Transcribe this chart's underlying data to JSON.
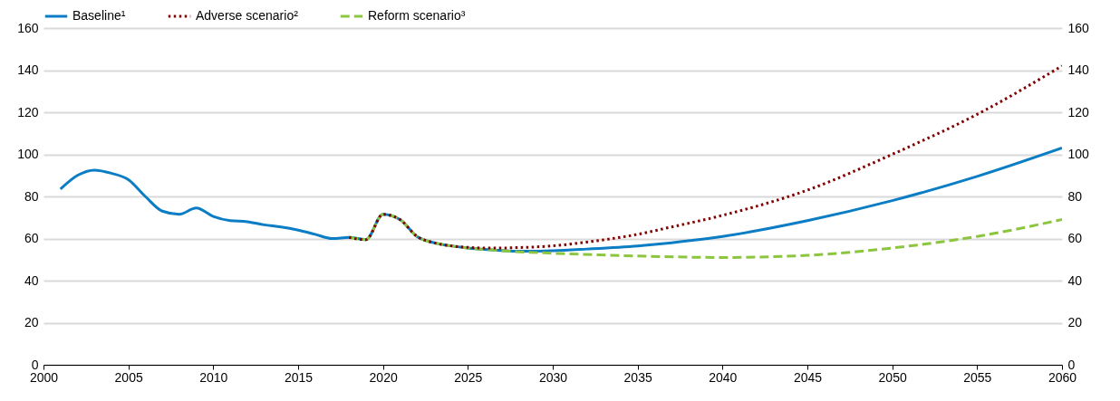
{
  "chart_data": {
    "type": "line",
    "xlim": [
      2000,
      2060
    ],
    "xticks": [
      2000,
      2005,
      2010,
      2015,
      2020,
      2025,
      2030,
      2035,
      2040,
      2045,
      2050,
      2055,
      2060
    ],
    "ylim": [
      0,
      160
    ],
    "yticks": [
      0,
      20,
      40,
      60,
      80,
      100,
      120,
      140,
      160
    ],
    "y2lim": [
      0,
      160
    ],
    "y2ticks": [
      0,
      20,
      40,
      60,
      80,
      100,
      120,
      140,
      160
    ],
    "grid": "y",
    "legend": "top",
    "series": [
      {
        "name": "Baseline¹",
        "color": "#0b7dc4",
        "line_style": "solid",
        "x": [
          2001,
          2002,
          2003,
          2004,
          2005,
          2006,
          2007,
          2008,
          2009,
          2010,
          2011,
          2012,
          2013,
          2014,
          2015,
          2016,
          2017,
          2018,
          2019,
          2020,
          2021,
          2022,
          2023,
          2024,
          2025,
          2026,
          2027,
          2028,
          2029,
          2030,
          2032,
          2035,
          2037,
          2040,
          2045,
          2050,
          2055,
          2060
        ],
        "values": [
          83.5,
          90,
          92.5,
          91,
          88,
          80,
          73,
          71.5,
          74.5,
          70.5,
          68.5,
          68,
          66.5,
          65.5,
          64,
          62,
          60,
          60.5,
          59.5,
          71.5,
          69,
          61,
          58,
          56.5,
          55.5,
          54.8,
          54.3,
          54,
          54,
          54.2,
          55,
          56.5,
          58,
          61,
          68.5,
          78,
          89.5,
          103
        ]
      },
      {
        "name": "Adverse scenario²",
        "color": "#800000",
        "line_style": "dotted",
        "x": [
          2018,
          2019,
          2020,
          2021,
          2022,
          2023,
          2024,
          2025,
          2026,
          2027,
          2028,
          2030,
          2032,
          2035,
          2037,
          2040,
          2045,
          2050,
          2055,
          2060
        ],
        "values": [
          60.5,
          59.5,
          71.5,
          69,
          61,
          58,
          56.5,
          55.8,
          55.5,
          55.5,
          55.7,
          56.5,
          58.3,
          62,
          65.5,
          71,
          83,
          100,
          119,
          142
        ]
      },
      {
        "name": "Reform scenario³",
        "color": "#8cc63f",
        "line_style": "dashed",
        "x": [
          2018,
          2019,
          2020,
          2021,
          2022,
          2023,
          2024,
          2025,
          2026,
          2027,
          2028,
          2030,
          2035,
          2040,
          2045,
          2050,
          2055,
          2060
        ],
        "values": [
          60.5,
          59.5,
          71.5,
          69,
          61,
          58,
          56.5,
          55.5,
          54.8,
          54.2,
          53.7,
          53,
          51.7,
          51,
          52,
          55.5,
          61,
          69
        ]
      }
    ]
  }
}
